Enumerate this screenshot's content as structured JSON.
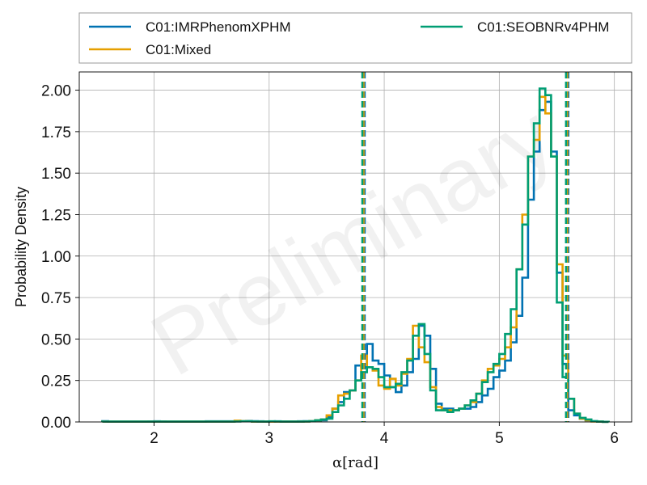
{
  "chart_data": {
    "type": "line",
    "style": "step-histogram",
    "xlabel": "α[rad]",
    "ylabel": "Probability Density",
    "watermark": "Preliminary",
    "xlim": [
      1.35,
      6.15
    ],
    "ylim": [
      0,
      2.11
    ],
    "xticks": [
      2,
      3,
      4,
      5,
      6
    ],
    "yticks": [
      "0.00",
      "0.25",
      "0.50",
      "0.75",
      "1.00",
      "1.25",
      "1.50",
      "1.75",
      "2.00"
    ],
    "grid": true,
    "legend_placement": "top (above plot, two columns)",
    "bin_edges": [
      1.55,
      1.6,
      1.65,
      1.7,
      1.75,
      1.8,
      1.85,
      1.9,
      1.95,
      2.0,
      2.05,
      2.1,
      2.15,
      2.2,
      2.25,
      2.3,
      2.35,
      2.4,
      2.45,
      2.5,
      2.55,
      2.6,
      2.65,
      2.7,
      2.75,
      2.8,
      2.85,
      2.9,
      2.95,
      3.0,
      3.05,
      3.1,
      3.15,
      3.2,
      3.25,
      3.3,
      3.35,
      3.4,
      3.45,
      3.5,
      3.55,
      3.6,
      3.65,
      3.7,
      3.75,
      3.8,
      3.85,
      3.9,
      3.95,
      4.0,
      4.05,
      4.1,
      4.15,
      4.2,
      4.25,
      4.3,
      4.35,
      4.4,
      4.45,
      4.5,
      4.55,
      4.6,
      4.65,
      4.7,
      4.75,
      4.8,
      4.85,
      4.9,
      4.95,
      5.0,
      5.05,
      5.1,
      5.15,
      5.2,
      5.25,
      5.3,
      5.35,
      5.4,
      5.45,
      5.5,
      5.55,
      5.6,
      5.65,
      5.7,
      5.75,
      5.8,
      5.85,
      5.9,
      5.95
    ],
    "series": [
      {
        "name": "C01:IMRPhenomXPHM",
        "color": "#0072b2",
        "values": [
          0.005,
          0.002,
          0.002,
          0.002,
          0.002,
          0.002,
          0.002,
          0.002,
          0.003,
          0.004,
          0.003,
          0.002,
          0.002,
          0.002,
          0.002,
          0.002,
          0.002,
          0.002,
          0.004,
          0.004,
          0.004,
          0.004,
          0.004,
          0.005,
          0.005,
          0.006,
          0.005,
          0.004,
          0.003,
          0.003,
          0.004,
          0.003,
          0.003,
          0.003,
          0.004,
          0.005,
          0.005,
          0.008,
          0.01,
          0.03,
          0.08,
          0.12,
          0.18,
          0.19,
          0.34,
          0.33,
          0.47,
          0.37,
          0.35,
          0.28,
          0.21,
          0.18,
          0.22,
          0.3,
          0.38,
          0.58,
          0.52,
          0.32,
          0.11,
          0.08,
          0.08,
          0.07,
          0.08,
          0.08,
          0.09,
          0.12,
          0.16,
          0.2,
          0.27,
          0.31,
          0.37,
          0.48,
          0.64,
          0.87,
          1.34,
          1.63,
          1.88,
          1.93,
          1.63,
          0.9,
          0.35,
          0.07,
          0.04,
          0.02,
          0.01,
          0.005,
          0.002,
          0.001
        ]
      },
      {
        "name": "C01:Mixed",
        "color": "#e69f00",
        "values": [
          0.002,
          0.002,
          0.002,
          0.002,
          0.002,
          0.002,
          0.002,
          0.002,
          0.002,
          0.002,
          0.002,
          0.002,
          0.002,
          0.002,
          0.002,
          0.002,
          0.002,
          0.002,
          0.002,
          0.002,
          0.002,
          0.002,
          0.002,
          0.008,
          0.005,
          0.004,
          0.002,
          0.002,
          0.002,
          0.002,
          0.002,
          0.002,
          0.002,
          0.002,
          0.002,
          0.003,
          0.005,
          0.01,
          0.015,
          0.04,
          0.08,
          0.16,
          0.17,
          0.19,
          0.25,
          0.4,
          0.33,
          0.31,
          0.22,
          0.2,
          0.26,
          0.22,
          0.29,
          0.38,
          0.58,
          0.45,
          0.36,
          0.21,
          0.09,
          0.07,
          0.07,
          0.07,
          0.08,
          0.1,
          0.12,
          0.17,
          0.25,
          0.32,
          0.34,
          0.38,
          0.45,
          0.57,
          0.92,
          1.25,
          1.6,
          1.7,
          1.96,
          1.86,
          1.6,
          0.95,
          0.4,
          0.14,
          0.05,
          0.02,
          0.01,
          0.003,
          0.002,
          0.001
        ]
      },
      {
        "name": "C01:SEOBNRv4PHM",
        "color": "#009e73",
        "values": [
          0.002,
          0.002,
          0.002,
          0.002,
          0.002,
          0.002,
          0.002,
          0.002,
          0.002,
          0.002,
          0.002,
          0.002,
          0.002,
          0.002,
          0.002,
          0.002,
          0.002,
          0.002,
          0.002,
          0.002,
          0.002,
          0.002,
          0.002,
          0.003,
          0.004,
          0.004,
          0.003,
          0.002,
          0.002,
          0.004,
          0.003,
          0.002,
          0.002,
          0.002,
          0.002,
          0.003,
          0.005,
          0.01,
          0.015,
          0.02,
          0.06,
          0.1,
          0.14,
          0.19,
          0.25,
          0.3,
          0.33,
          0.32,
          0.27,
          0.21,
          0.21,
          0.23,
          0.3,
          0.37,
          0.52,
          0.59,
          0.41,
          0.19,
          0.07,
          0.07,
          0.06,
          0.07,
          0.08,
          0.1,
          0.13,
          0.17,
          0.24,
          0.3,
          0.35,
          0.41,
          0.53,
          0.68,
          0.92,
          1.19,
          1.6,
          1.8,
          2.01,
          1.97,
          1.6,
          0.72,
          0.27,
          0.14,
          0.05,
          0.025,
          0.015,
          0.005,
          0.002,
          0.001
        ]
      }
    ],
    "vlines": [
      {
        "series": "C01:IMRPhenomXPHM",
        "x": [
          3.83,
          5.6
        ]
      },
      {
        "series": "C01:Mixed",
        "x": [
          3.82,
          5.59
        ]
      },
      {
        "series": "C01:SEOBNRv4PHM",
        "x": [
          3.81,
          5.58
        ]
      }
    ]
  }
}
